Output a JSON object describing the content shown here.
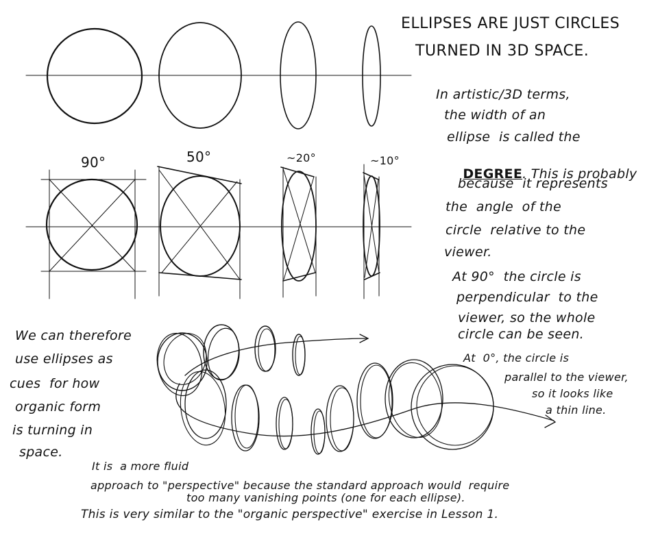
{
  "title": {
    "line1": "ELLIPSES ARE JUST CIRCLES",
    "line2": "TURNED IN 3D SPACE."
  },
  "degree_labels": [
    "90°",
    "50°",
    "~20°",
    "~10°"
  ],
  "note_degree": {
    "line1": "In artistic/3D terms,",
    "line2": "the width of an",
    "line3_pre": "ellipse  is called the",
    "line4_word": "DEGREE",
    "line4_post": ". This is probably",
    "line5": "because  it represents",
    "line6": "the  angle  of the",
    "line7": "circle  relative to the",
    "line8": "viewer."
  },
  "note_90": {
    "line1": "At 90°  the circle is",
    "line2": "perpendicular  to the",
    "line3": "viewer, so the whole",
    "line4": "circle can be seen."
  },
  "note_0": {
    "line1": "At  0°, the circle is",
    "line2": "parallel to the viewer,",
    "line3": "so it looks like",
    "line4": "a thin line."
  },
  "note_left": {
    "line1": "We can therefore",
    "line2": "use ellipses as",
    "line3": "cues  for how",
    "line4": "organic form",
    "line5": "is turning in",
    "line6": "space."
  },
  "note_bottom": {
    "line1": "It is  a more fluid",
    "line2": "approach to \"perspective\" because the standard approach would  require",
    "line3": "too many vanishing points (one for each ellipse).",
    "line4": "This is very similar to the \"organic perspective\" exercise in Lesson 1."
  }
}
